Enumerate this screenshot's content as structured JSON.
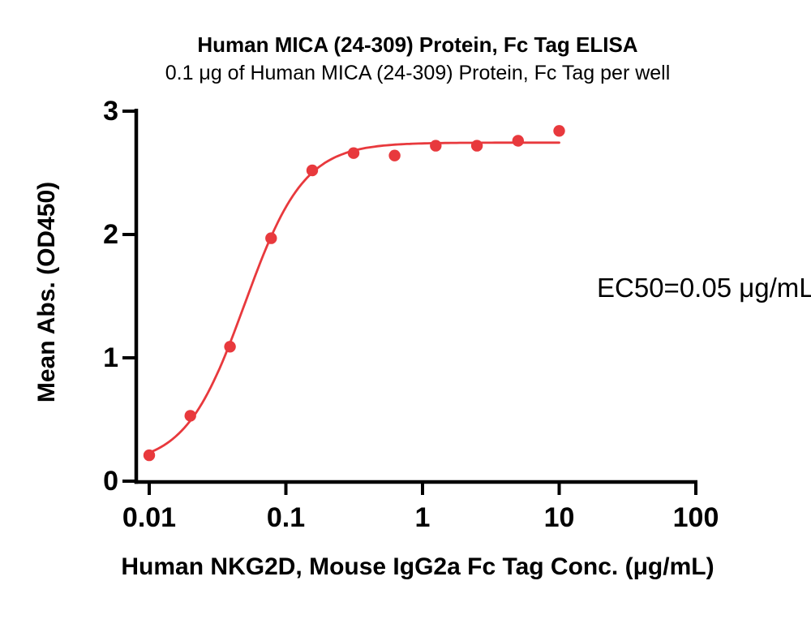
{
  "chart_data": {
    "type": "scatter",
    "title": "Human MICA (24-309) Protein, Fc Tag ELISA",
    "subtitle": "0.1 μg of Human MICA (24-309) Protein, Fc Tag per well",
    "xlabel": "Human NKG2D, Mouse IgG2a Fc Tag Conc. (μg/mL)",
    "ylabel": "Mean Abs. (OD450)",
    "annotation": "EC50=0.05 μg/mL",
    "x_scale": "log",
    "xlim": [
      0.008,
      100
    ],
    "ylim": [
      0,
      3
    ],
    "x_ticks": [
      0.01,
      0.1,
      1,
      10,
      100
    ],
    "x_tick_labels": [
      "0.01",
      "0.1",
      "1",
      "10",
      "100"
    ],
    "y_ticks": [
      0,
      1,
      2,
      3
    ],
    "y_tick_labels": [
      "0",
      "1",
      "2",
      "3"
    ],
    "grid": false,
    "legend": false,
    "x": [
      0.01,
      0.02,
      0.039,
      0.078,
      0.156,
      0.313,
      0.625,
      1.25,
      2.5,
      5,
      10
    ],
    "y": [
      0.21,
      0.53,
      1.09,
      1.97,
      2.52,
      2.66,
      2.64,
      2.72,
      2.72,
      2.76,
      2.84
    ],
    "fit_curve": {
      "model": "4PL",
      "bottom": 0.13,
      "top": 2.745,
      "ec50": 0.05,
      "hill": 2.0,
      "x_range": [
        0.01,
        10
      ]
    },
    "colors": {
      "series": "#E8393D",
      "axis": "#000000",
      "text": "#000000"
    }
  }
}
